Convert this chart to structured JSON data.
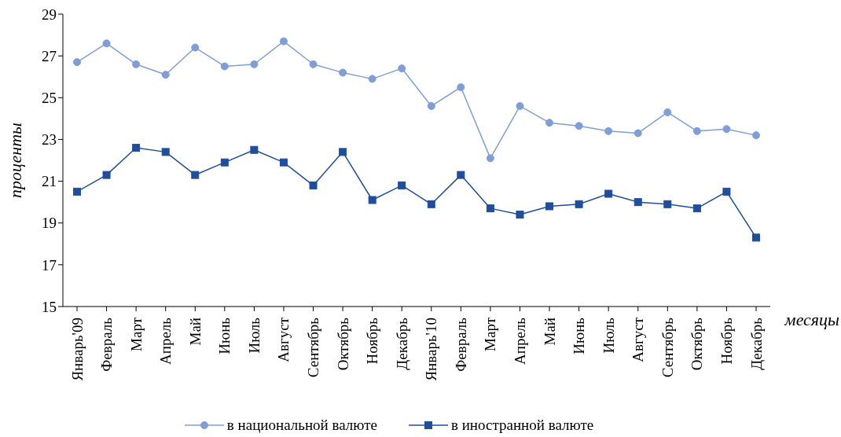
{
  "chart_data": {
    "type": "line",
    "xlabel": "месяцы",
    "ylabel": "проценты",
    "categories": [
      "Январь'09",
      "Февраль",
      "Март",
      "Апрель",
      "Май",
      "Июнь",
      "Июль",
      "Август",
      "Сентябрь",
      "Октябрь",
      "Ноябрь",
      "Декабрь",
      "Январь'10",
      "Февраль",
      "Март",
      "Апрель",
      "Май",
      "Июнь",
      "Июль",
      "Август",
      "Сентябрь",
      "Октябрь",
      "Ноябрь",
      "Декабрь"
    ],
    "series": [
      {
        "name": "в национальной валюте",
        "color": "#7f9ed8",
        "marker": "circle",
        "values": [
          26.7,
          27.6,
          26.6,
          26.1,
          27.4,
          26.5,
          26.6,
          27.7,
          26.6,
          26.2,
          25.9,
          26.4,
          24.6,
          25.5,
          22.1,
          24.6,
          23.8,
          23.65,
          23.4,
          23.3,
          24.3,
          23.4,
          23.5,
          23.2
        ]
      },
      {
        "name": "в иностранной валюте",
        "color": "#1f4e9c",
        "marker": "square",
        "values": [
          20.5,
          21.3,
          22.6,
          22.4,
          21.3,
          21.9,
          22.5,
          21.9,
          20.8,
          22.4,
          20.1,
          20.8,
          19.9,
          21.3,
          19.7,
          19.4,
          19.8,
          19.9,
          20.4,
          20.0,
          19.9,
          19.7,
          20.5,
          18.3
        ]
      }
    ],
    "ylim": [
      15,
      29
    ],
    "yticks": [
      15,
      17,
      19,
      21,
      23,
      25,
      27,
      29
    ],
    "grid": false,
    "legend": "bottom"
  }
}
